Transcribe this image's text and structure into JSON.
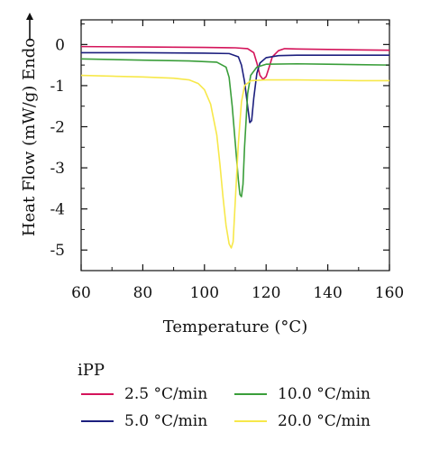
{
  "chart_data": {
    "type": "line",
    "xlabel": "Temperature (°C)",
    "ylabel": "Heat Flow (mW/g) Endo",
    "xlim": [
      60,
      160
    ],
    "ylim": [
      -5.5,
      0.6
    ],
    "xticks": [
      60,
      80,
      100,
      120,
      140,
      160
    ],
    "yticks": [
      0,
      -1,
      -2,
      -3,
      -4,
      -5
    ],
    "xtick_labels": [
      "60",
      "80",
      "100",
      "120",
      "140",
      "160"
    ],
    "ytick_labels": [
      "0",
      "-1",
      "-2",
      "-3",
      "-4",
      "-5"
    ],
    "grid": false,
    "legend_title": "iPP",
    "legend_position": "bottom",
    "series": [
      {
        "name": "2.5 °C/min",
        "color": "#d4145a",
        "x": [
          60,
          80,
          100,
          110,
          114,
          116,
          117,
          118,
          119,
          120,
          121,
          122,
          124,
          126,
          130,
          140,
          150,
          160
        ],
        "y": [
          -0.05,
          -0.06,
          -0.07,
          -0.08,
          -0.1,
          -0.2,
          -0.45,
          -0.75,
          -0.85,
          -0.78,
          -0.55,
          -0.3,
          -0.15,
          -0.1,
          -0.11,
          -0.12,
          -0.13,
          -0.14
        ]
      },
      {
        "name": "5.0 °C/min",
        "color": "#1c1f7e",
        "x": [
          60,
          80,
          100,
          108,
          111,
          112,
          113,
          114,
          114.7,
          115.3,
          116,
          117,
          118,
          120,
          124,
          130,
          140,
          150,
          160
        ],
        "y": [
          -0.2,
          -0.2,
          -0.21,
          -0.22,
          -0.3,
          -0.5,
          -0.9,
          -1.5,
          -1.9,
          -1.85,
          -1.3,
          -0.7,
          -0.45,
          -0.32,
          -0.27,
          -0.26,
          -0.26,
          -0.26,
          -0.26
        ]
      },
      {
        "name": "10.0 °C/min",
        "color": "#3a9e3a",
        "x": [
          60,
          80,
          95,
          104,
          107,
          108,
          109,
          110,
          111,
          111.5,
          112,
          112.5,
          113,
          114,
          115,
          117,
          120,
          130,
          140,
          150,
          160
        ],
        "y": [
          -0.35,
          -0.38,
          -0.4,
          -0.43,
          -0.55,
          -0.8,
          -1.5,
          -2.4,
          -3.3,
          -3.65,
          -3.7,
          -3.4,
          -2.5,
          -1.2,
          -0.75,
          -0.55,
          -0.48,
          -0.47,
          -0.48,
          -0.49,
          -0.5
        ]
      },
      {
        "name": "20.0 °C/min",
        "color": "#f7e84a",
        "x": [
          60,
          70,
          80,
          90,
          95,
          98,
          100,
          102,
          104,
          105,
          106,
          107,
          108,
          108.7,
          109.3,
          110,
          111,
          112,
          113,
          115,
          120,
          130,
          140,
          150,
          160
        ],
        "y": [
          -0.75,
          -0.77,
          -0.79,
          -0.82,
          -0.86,
          -0.95,
          -1.1,
          -1.45,
          -2.2,
          -2.9,
          -3.7,
          -4.4,
          -4.85,
          -4.95,
          -4.8,
          -3.8,
          -2.4,
          -1.4,
          -1.0,
          -0.88,
          -0.86,
          -0.86,
          -0.87,
          -0.88,
          -0.88
        ]
      }
    ]
  }
}
